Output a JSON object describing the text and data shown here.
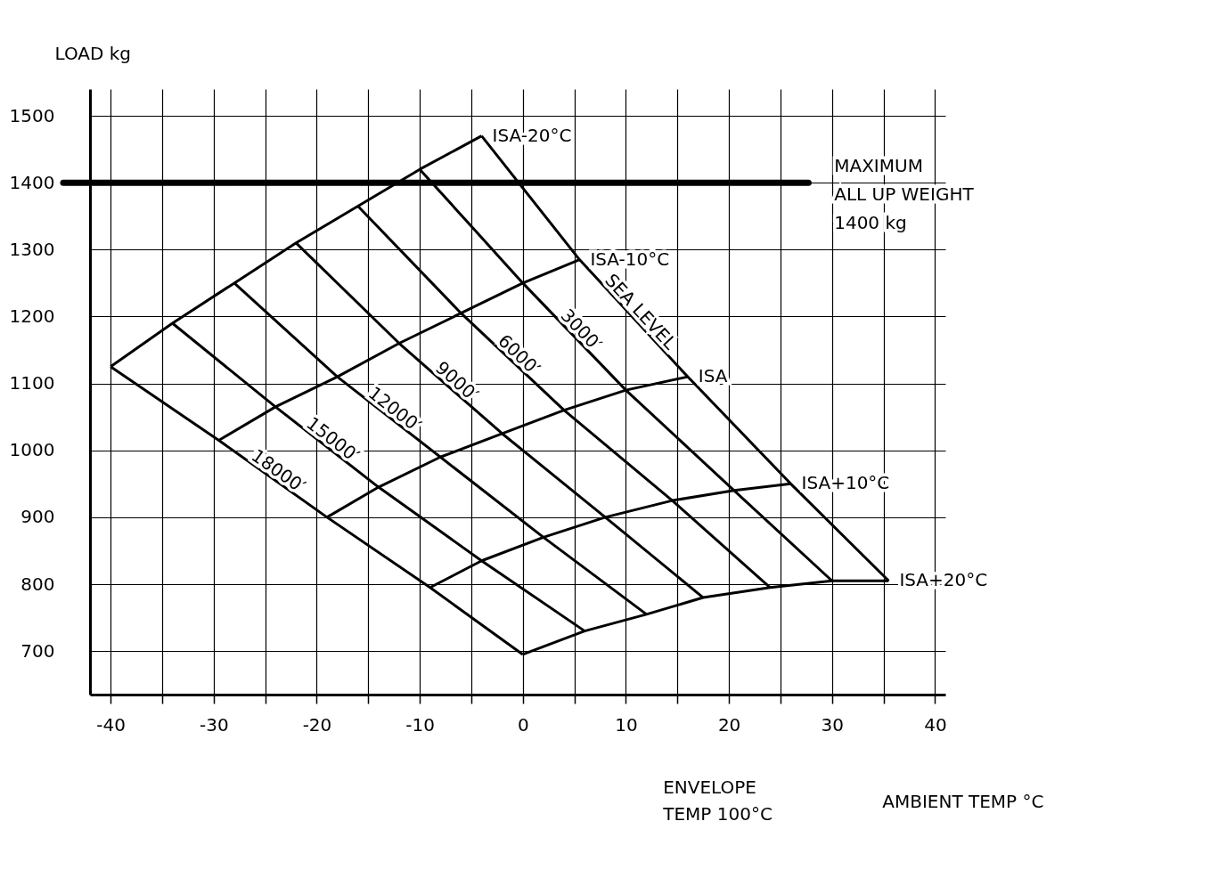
{
  "chart_data": {
    "type": "line",
    "xlabel": "AMBIENT TEMP °C",
    "ylabel": "LOAD kg",
    "xlim": [
      -42,
      41
    ],
    "ylim": [
      635,
      1540
    ],
    "xticks": [
      -40,
      {
        "value": -35,
        "label": null
      },
      -30,
      {
        "value": -25,
        "label": null
      },
      -20,
      {
        "value": -15,
        "label": null
      },
      -10,
      {
        "value": -5,
        "label": null
      },
      0,
      {
        "value": 5,
        "label": null
      },
      10,
      {
        "value": 15,
        "label": null
      },
      20,
      {
        "value": 25,
        "label": null
      },
      30,
      {
        "value": 35,
        "label": null
      },
      40
    ],
    "yticks": [
      700,
      800,
      900,
      1000,
      1100,
      1200,
      1300,
      1400,
      1500
    ],
    "grid": true,
    "legend": false,
    "marker": "none",
    "line_style": "solid",
    "series": [
      {
        "name": "ISA-20°C",
        "color": "#000000",
        "x": [
          -40,
          -34,
          -28,
          -22,
          -16,
          -10,
          -4
        ],
        "values": [
          1125,
          1190,
          1250,
          1310,
          1365,
          1420,
          1470
        ]
      },
      {
        "name": "ISA-10°C",
        "color": "#000000",
        "x": [
          -29.5,
          -24,
          -18,
          -12,
          -6,
          0,
          5.5
        ],
        "values": [
          1015,
          1065,
          1110,
          1160,
          1205,
          1250,
          1285
        ]
      },
      {
        "name": "ISA",
        "color": "#000000",
        "x": [
          -19,
          -14,
          -8,
          -2,
          4,
          10,
          16
        ],
        "values": [
          900,
          945,
          990,
          1025,
          1060,
          1090,
          1110
        ]
      },
      {
        "name": "ISA+10°C",
        "color": "#000000",
        "x": [
          -9,
          -4,
          2,
          8,
          14.5,
          20.5,
          26
        ],
        "values": [
          795,
          835,
          870,
          900,
          925,
          940,
          950
        ]
      },
      {
        "name": "ISA+20°C",
        "color": "#000000",
        "x": [
          0,
          6,
          12,
          17.5,
          24,
          30,
          35.5
        ],
        "values": [
          695,
          730,
          755,
          780,
          795,
          805,
          805
        ]
      },
      {
        "name": "SEA LEVEL",
        "color": "#000000",
        "x": [
          -4,
          5.5,
          16,
          26,
          35.5
        ],
        "values": [
          1470,
          1285,
          1110,
          950,
          805
        ]
      },
      {
        "name": "3000′",
        "color": "#000000",
        "x": [
          -10,
          0,
          10,
          20.5,
          30
        ],
        "values": [
          1420,
          1250,
          1090,
          940,
          805
        ]
      },
      {
        "name": "6000′",
        "color": "#000000",
        "x": [
          -16,
          -6,
          4,
          14.5,
          24
        ],
        "values": [
          1365,
          1205,
          1060,
          925,
          795
        ]
      },
      {
        "name": "9000′",
        "color": "#000000",
        "x": [
          -22,
          -12,
          -2,
          8,
          17.5
        ],
        "values": [
          1310,
          1160,
          1025,
          900,
          780
        ]
      },
      {
        "name": "12000′",
        "color": "#000000",
        "x": [
          -28,
          -18,
          -8,
          2,
          12
        ],
        "values": [
          1250,
          1110,
          990,
          870,
          755
        ]
      },
      {
        "name": "15000′",
        "color": "#000000",
        "x": [
          -34,
          -24,
          -14,
          -4,
          6
        ],
        "values": [
          1190,
          1065,
          945,
          835,
          730
        ]
      },
      {
        "name": "18000′",
        "color": "#000000",
        "x": [
          -40,
          -29.5,
          -19,
          -9,
          0
        ],
        "values": [
          1125,
          1015,
          900,
          795,
          695
        ]
      }
    ],
    "ref_lines": [
      {
        "axis": "y",
        "value": 1400,
        "label": "MAXIMUM\nALL UP WEIGHT\n1400 kg",
        "color": "#000000",
        "line_style": "solid"
      }
    ],
    "annotations": [
      "ENVELOPE\nTEMP 100°C"
    ]
  }
}
